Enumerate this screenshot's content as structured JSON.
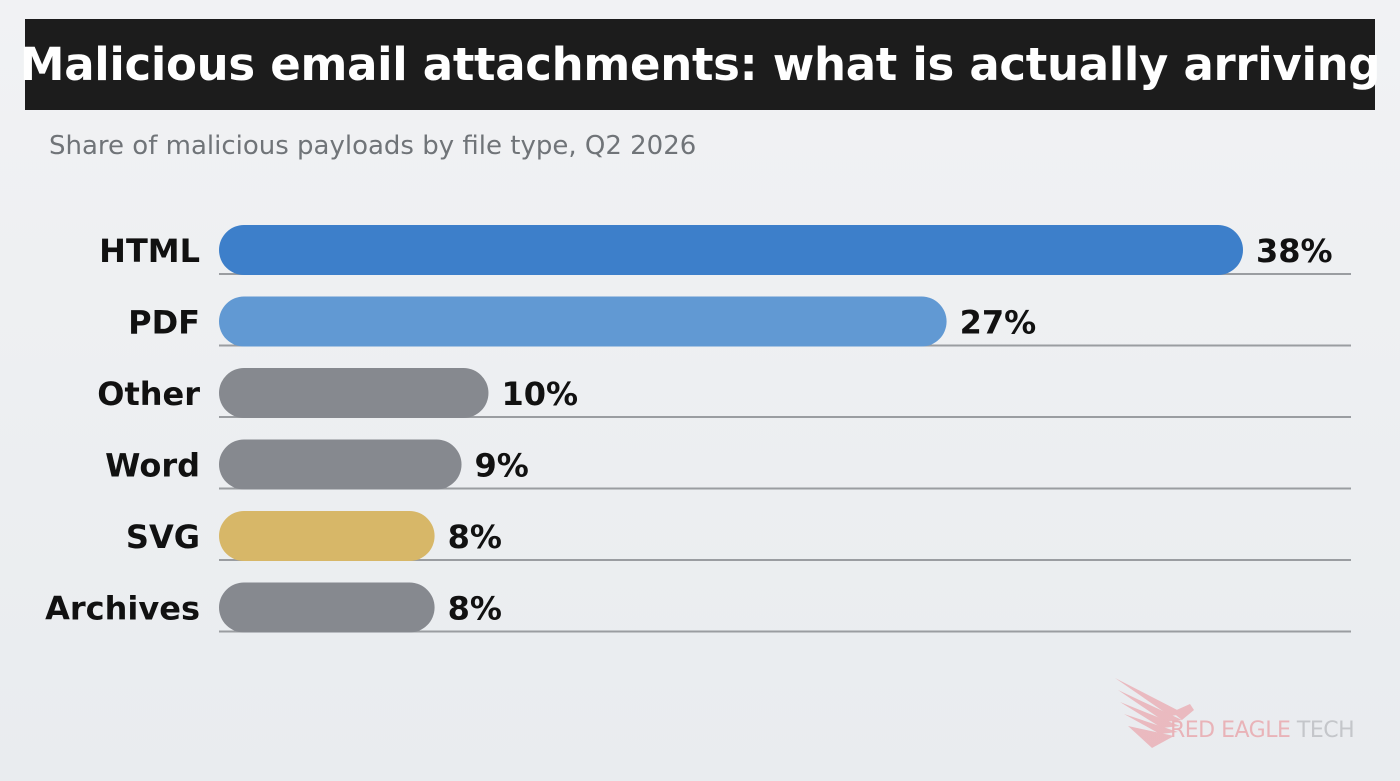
{
  "header": {
    "title": "Malicious email attachments: what is actually arriving",
    "subtitle": "Share of malicious payloads by file type, Q2 2026"
  },
  "chart_data": {
    "type": "bar",
    "orientation": "horizontal",
    "categories": [
      "HTML",
      "PDF",
      "Other",
      "Word",
      "SVG",
      "Archives"
    ],
    "values": [
      38,
      27,
      10,
      9,
      8,
      8
    ],
    "value_labels": [
      "38%",
      "27%",
      "10%",
      "9%",
      "8%",
      "8%"
    ],
    "colors": [
      "#3d7fca",
      "#6199d3",
      "#86898f",
      "#86898f",
      "#d7b768",
      "#86898f"
    ],
    "unit": "%",
    "xlim": [
      0,
      42
    ],
    "grid": false,
    "legend": "none"
  },
  "watermark": {
    "brand_red": "RED EAGLE",
    "brand_gray": " TECH",
    "icon": "eagle-wing-icon",
    "colors": {
      "red": "#e9b3b8",
      "gray": "#c4c6ca"
    }
  }
}
